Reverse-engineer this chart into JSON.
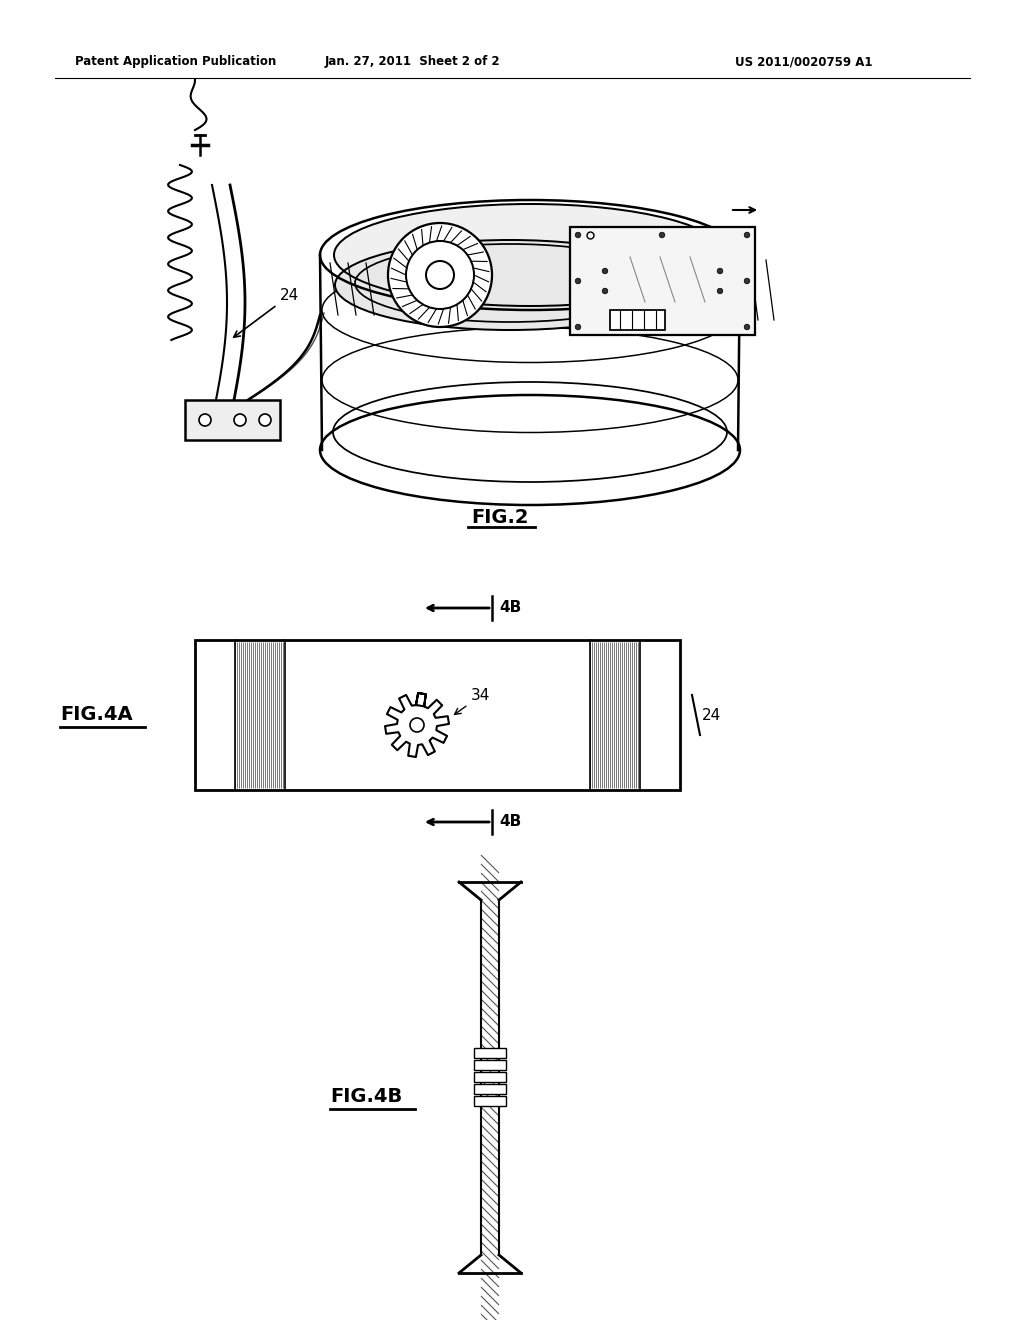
{
  "bg_color": "#ffffff",
  "text_color": "#000000",
  "header_left": "Patent Application Publication",
  "header_center": "Jan. 27, 2011  Sheet 2 of 2",
  "header_right": "US 2011/0020759 A1",
  "fig2_label": "FIG.2",
  "fig4a_label": "FIG.4A",
  "fig4b_label": "FIG.4B",
  "lw_main": 1.8,
  "lw_thin": 0.9,
  "gray_line": "#888888"
}
